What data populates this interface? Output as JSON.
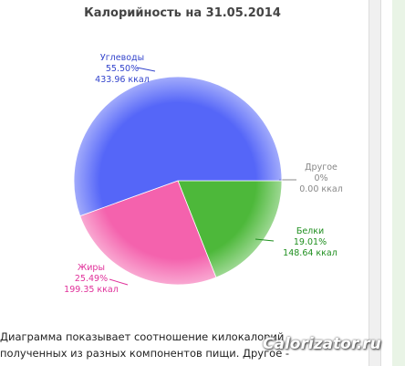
{
  "chart_data": {
    "type": "pie",
    "title": "Калорийность на 31.05.2014",
    "categories": [
      "Другое",
      "Белки",
      "Жиры",
      "Углеводы"
    ],
    "values": [
      0,
      19.01,
      25.49,
      55.5
    ],
    "value_labels": [
      "0%",
      "19.01%",
      "25.49%",
      "55.50%"
    ],
    "calories": [
      0,
      148.64,
      199.35,
      433.96
    ],
    "calorie_labels": [
      "0.00 ккал",
      "148.64 ккал",
      "199.35 ккал",
      "433.96 ккал"
    ],
    "colors": [
      "#c8c8e8",
      "#4db83a",
      "#f462ad",
      "#5566f8"
    ],
    "label_colors": [
      "#888888",
      "#1f8f1f",
      "#e0309a",
      "#3344cc"
    ]
  },
  "description": [
    "Диаграмма показывает соотношение килокалорий",
    "полученных из разных компонентов пищи. Другое -"
  ],
  "watermark": "Calorizator.ru"
}
